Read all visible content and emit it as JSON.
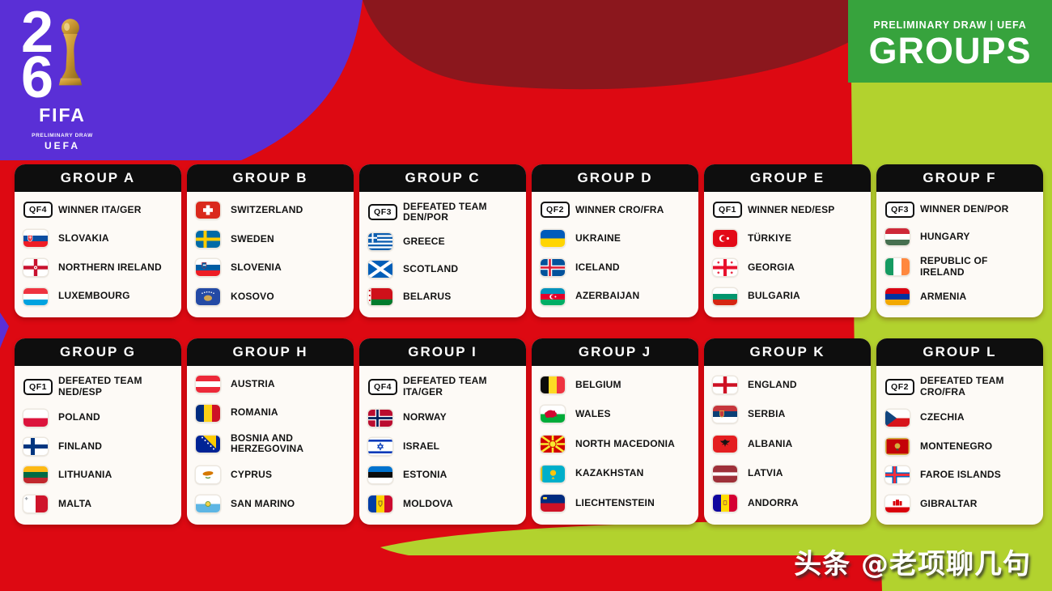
{
  "brand": {
    "logo_digit_top": "2",
    "logo_digit_bottom": "6",
    "logo_trophy_icon": "world-cup-trophy-icon",
    "logo_wordmark": "FIFA",
    "logo_subtitle": "PRELIMINARY DRAW",
    "logo_org": "UEFA"
  },
  "banner": {
    "kicker": "PRELIMINARY DRAW | UEFA",
    "title": "GROUPS"
  },
  "groups": [
    {
      "name": "GROUP A",
      "teams": [
        {
          "badge": "QF4",
          "label": "WINNER ITA/GER"
        },
        {
          "flag": "slovakia",
          "label": "SLOVAKIA"
        },
        {
          "flag": "northern-ireland",
          "label": "NORTHERN IRELAND"
        },
        {
          "flag": "luxembourg",
          "label": "LUXEMBOURG"
        }
      ]
    },
    {
      "name": "GROUP B",
      "teams": [
        {
          "flag": "switzerland",
          "label": "SWITZERLAND"
        },
        {
          "flag": "sweden",
          "label": "SWEDEN"
        },
        {
          "flag": "slovenia",
          "label": "SLOVENIA"
        },
        {
          "flag": "kosovo",
          "label": "KOSOVO"
        }
      ]
    },
    {
      "name": "GROUP C",
      "teams": [
        {
          "badge": "QF3",
          "label": "DEFEATED TEAM\nDEN/POR"
        },
        {
          "flag": "greece",
          "label": "GREECE"
        },
        {
          "flag": "scotland",
          "label": "SCOTLAND"
        },
        {
          "flag": "belarus",
          "label": "BELARUS"
        }
      ]
    },
    {
      "name": "GROUP D",
      "teams": [
        {
          "badge": "QF2",
          "label": "WINNER CRO/FRA"
        },
        {
          "flag": "ukraine",
          "label": "UKRAINE"
        },
        {
          "flag": "iceland",
          "label": "ICELAND"
        },
        {
          "flag": "azerbaijan",
          "label": "AZERBAIJAN"
        }
      ]
    },
    {
      "name": "GROUP E",
      "teams": [
        {
          "badge": "QF1",
          "label": "WINNER NED/ESP"
        },
        {
          "flag": "turkiye",
          "label": "TÜRKIYE"
        },
        {
          "flag": "georgia",
          "label": "GEORGIA"
        },
        {
          "flag": "bulgaria",
          "label": "BULGARIA"
        }
      ]
    },
    {
      "name": "GROUP F",
      "teams": [
        {
          "badge": "QF3",
          "label": "WINNER DEN/POR"
        },
        {
          "flag": "hungary",
          "label": "HUNGARY"
        },
        {
          "flag": "ireland",
          "label": "REPUBLIC OF IRELAND"
        },
        {
          "flag": "armenia",
          "label": "ARMENIA"
        }
      ]
    },
    {
      "name": "GROUP G",
      "teams": [
        {
          "badge": "QF1",
          "label": "DEFEATED TEAM\nNED/ESP"
        },
        {
          "flag": "poland",
          "label": "POLAND"
        },
        {
          "flag": "finland",
          "label": "FINLAND"
        },
        {
          "flag": "lithuania",
          "label": "LITHUANIA"
        },
        {
          "flag": "malta",
          "label": "MALTA"
        }
      ]
    },
    {
      "name": "GROUP H",
      "teams": [
        {
          "flag": "austria",
          "label": "AUSTRIA"
        },
        {
          "flag": "romania",
          "label": "ROMANIA"
        },
        {
          "flag": "bosnia-herzegovina",
          "label": "BOSNIA AND\nHERZEGOVINA"
        },
        {
          "flag": "cyprus",
          "label": "CYPRUS"
        },
        {
          "flag": "san-marino",
          "label": "SAN MARINO"
        }
      ]
    },
    {
      "name": "GROUP I",
      "teams": [
        {
          "badge": "QF4",
          "label": "DEFEATED TEAM\nITA/GER"
        },
        {
          "flag": "norway",
          "label": "NORWAY"
        },
        {
          "flag": "israel",
          "label": "ISRAEL"
        },
        {
          "flag": "estonia",
          "label": "ESTONIA"
        },
        {
          "flag": "moldova",
          "label": "MOLDOVA"
        }
      ]
    },
    {
      "name": "GROUP J",
      "teams": [
        {
          "flag": "belgium",
          "label": "BELGIUM"
        },
        {
          "flag": "wales",
          "label": "WALES"
        },
        {
          "flag": "north-macedonia",
          "label": "NORTH MACEDONIA"
        },
        {
          "flag": "kazakhstan",
          "label": "KAZAKHSTAN"
        },
        {
          "flag": "liechtenstein",
          "label": "LIECHTENSTEIN"
        }
      ]
    },
    {
      "name": "GROUP K",
      "teams": [
        {
          "flag": "england",
          "label": "ENGLAND"
        },
        {
          "flag": "serbia",
          "label": "SERBIA"
        },
        {
          "flag": "albania",
          "label": "ALBANIA"
        },
        {
          "flag": "latvia",
          "label": "LATVIA"
        },
        {
          "flag": "andorra",
          "label": "ANDORRA"
        }
      ]
    },
    {
      "name": "GROUP L",
      "teams": [
        {
          "badge": "QF2",
          "label": "DEFEATED TEAM\nCRO/FRA"
        },
        {
          "flag": "czechia",
          "label": "CZECHIA"
        },
        {
          "flag": "montenegro",
          "label": "MONTENEGRO"
        },
        {
          "flag": "faroe-islands",
          "label": "FAROE ISLANDS"
        },
        {
          "flag": "gibraltar",
          "label": "GIBRALTAR"
        }
      ]
    }
  ],
  "watermark": "头条 @老项聊几句",
  "colors": {
    "purple": "#5a2fd6",
    "maroon": "#8b171d",
    "red": "#dd0912",
    "lime": "#b2d22e",
    "green": "#37a33d",
    "card_bg": "#fdfaf6",
    "header_bg": "#0e0e0e"
  }
}
